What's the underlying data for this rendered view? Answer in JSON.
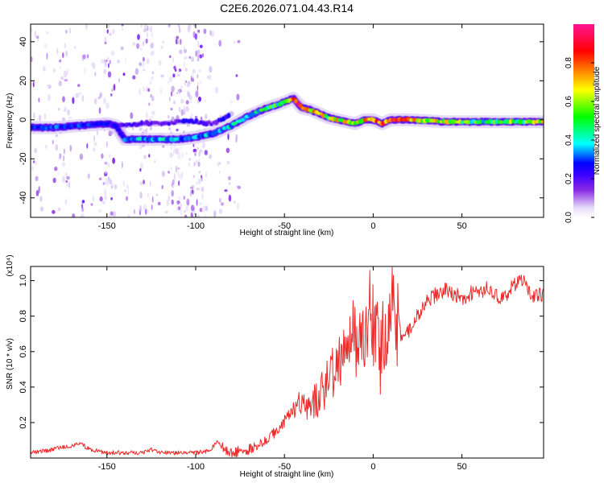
{
  "figure_title": "C2E6.2026.071.04.43.R14",
  "chart_data": [
    {
      "type": "heatmap",
      "title": "C2E6.2026.071.04.43.R14",
      "xlabel": "Height of straight line (km)",
      "ylabel": "Frequency (Hz)",
      "xlim": [
        -193,
        96
      ],
      "ylim": [
        -50,
        49
      ],
      "xticks": [
        -150,
        -100,
        -50,
        0,
        50
      ],
      "yticks": [
        -40,
        -20,
        0,
        20,
        40
      ],
      "colorbar": {
        "label": "Normalized spectral amplitude",
        "range": [
          0,
          1
        ],
        "ticks": [
          "0.0",
          "0.2",
          "0.4",
          "0.6",
          "0.8"
        ],
        "tick_values": [
          0.0,
          0.2,
          0.4,
          0.6,
          0.8
        ],
        "colormap": [
          "#ffffff",
          "#cdb6f0",
          "#8a2be2",
          "#3b00ff",
          "#0000ff",
          "#00ffff",
          "#00ff00",
          "#ffff00",
          "#ff8000",
          "#ff0000",
          "#ff1493"
        ]
      },
      "ridge_main": {
        "x": [
          -193,
          -180,
          -165,
          -150,
          -145,
          -140,
          -130,
          -120,
          -110,
          -100,
          -90,
          -80,
          -70,
          -60,
          -50,
          -45,
          -42,
          -40,
          -35,
          -30,
          -25,
          -20,
          -15,
          -10,
          -5,
          0,
          5,
          10,
          20,
          40,
          60,
          80,
          96
        ],
        "y": [
          -4,
          -4,
          -3,
          -2,
          -3,
          -10,
          -10,
          -10,
          -10,
          -9,
          -7,
          -3,
          2,
          6,
          9,
          11,
          8,
          6,
          5,
          3,
          1,
          0,
          -1,
          -2,
          0,
          0,
          -2,
          0,
          0,
          -1,
          -1,
          -1,
          -1
        ],
        "amplitude": [
          0.45,
          0.45,
          0.42,
          0.38,
          0.35,
          0.48,
          0.5,
          0.5,
          0.5,
          0.45,
          0.5,
          0.5,
          0.55,
          0.6,
          0.65,
          0.8,
          0.9,
          0.95,
          0.85,
          0.8,
          0.7,
          0.75,
          0.8,
          0.75,
          0.8,
          0.9,
          0.85,
          0.9,
          0.8,
          0.7,
          0.6,
          0.65,
          0.7
        ]
      },
      "ridge_upper": {
        "x": [
          -150,
          -140,
          -130,
          -120,
          -110,
          -100,
          -90,
          -80
        ],
        "y": [
          -2,
          -3,
          -2,
          -2,
          -1,
          -1,
          -2,
          3
        ],
        "amplitude": [
          0.3,
          0.3,
          0.25,
          0.25,
          0.3,
          0.3,
          0.3,
          0.4
        ]
      },
      "noise_region_x": [
        -193,
        -75
      ]
    },
    {
      "type": "line",
      "xlabel": "Height of straight line (km)",
      "ylabel": "SNR (10 * v/v)",
      "yscale_label": "(x10⁴)",
      "xlim": [
        -193,
        96
      ],
      "ylim": [
        0,
        1.08
      ],
      "xticks": [
        -150,
        -100,
        -50,
        0,
        50
      ],
      "yticks": [
        0.2,
        0.4,
        0.6,
        0.8,
        1.0
      ],
      "color": "#ee2b2b",
      "series": [
        {
          "name": "SNR",
          "x": [
            -193,
            -185,
            -175,
            -165,
            -160,
            -150,
            -140,
            -130,
            -125,
            -120,
            -110,
            -100,
            -92,
            -88,
            -85,
            -80,
            -70,
            -60,
            -55,
            -50,
            -45,
            -40,
            -35,
            -30,
            -25,
            -20,
            -15,
            -12,
            -10,
            -8,
            -5,
            -2,
            0,
            2,
            5,
            8,
            10,
            12,
            15,
            20,
            25,
            30,
            35,
            40,
            45,
            50,
            55,
            60,
            65,
            70,
            75,
            80,
            85,
            90,
            96
          ],
          "y": [
            0.03,
            0.04,
            0.06,
            0.08,
            0.05,
            0.03,
            0.03,
            0.03,
            0.05,
            0.03,
            0.03,
            0.03,
            0.04,
            0.09,
            0.06,
            0.03,
            0.05,
            0.1,
            0.15,
            0.2,
            0.28,
            0.32,
            0.3,
            0.35,
            0.45,
            0.5,
            0.65,
            0.7,
            0.72,
            0.6,
            0.7,
            0.85,
            0.78,
            0.65,
            0.6,
            0.75,
            0.9,
            0.85,
            0.7,
            0.72,
            0.8,
            0.88,
            0.92,
            0.95,
            0.93,
            0.9,
            0.93,
            0.92,
            0.96,
            0.9,
            0.92,
            0.98,
            1.0,
            0.9,
            0.93
          ]
        }
      ]
    }
  ]
}
